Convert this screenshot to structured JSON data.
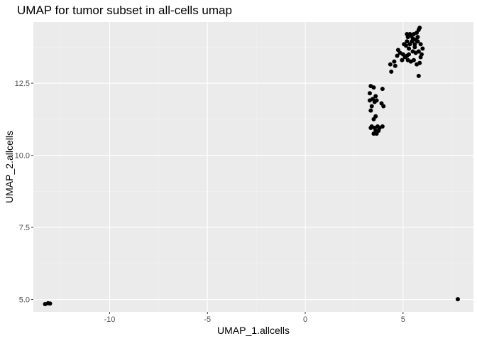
{
  "chart_data": {
    "type": "scatter",
    "title": "UMAP for tumor subset in all-cells umap",
    "xlabel": "UMAP_1.allcells",
    "ylabel": "UMAP_2.allcells",
    "xlim": [
      -13.9,
      8.6
    ],
    "ylim": [
      4.57,
      14.62
    ],
    "x_ticks": [
      -10,
      -5,
      0,
      5
    ],
    "x_tick_labels": [
      "-10",
      "-5",
      "0",
      "5"
    ],
    "y_ticks": [
      5.0,
      7.5,
      10.0,
      12.5
    ],
    "y_tick_labels": [
      "5.0",
      "7.5",
      "10.0",
      "12.5"
    ],
    "grid": true,
    "point_color": "#000000",
    "panel_color": "#ebebeb",
    "points": [
      [
        -13.3,
        4.84
      ],
      [
        -13.15,
        4.87
      ],
      [
        -13.05,
        4.86
      ],
      [
        7.8,
        5.01
      ],
      [
        3.35,
        12.4
      ],
      [
        3.5,
        12.35
      ],
      [
        3.3,
        12.15
      ],
      [
        3.6,
        12.05
      ],
      [
        3.45,
        11.95
      ],
      [
        3.3,
        11.9
      ],
      [
        3.55,
        11.85
      ],
      [
        3.65,
        11.9
      ],
      [
        3.4,
        11.7
      ],
      [
        3.35,
        11.55
      ],
      [
        3.6,
        11.35
      ],
      [
        3.5,
        11.25
      ],
      [
        3.95,
        12.3
      ],
      [
        3.9,
        11.8
      ],
      [
        4.0,
        11.7
      ],
      [
        3.4,
        11.0
      ],
      [
        3.35,
        10.95
      ],
      [
        3.55,
        10.95
      ],
      [
        3.7,
        11.0
      ],
      [
        3.8,
        10.95
      ],
      [
        3.95,
        11.0
      ],
      [
        3.6,
        10.85
      ],
      [
        3.75,
        10.85
      ],
      [
        3.5,
        10.75
      ],
      [
        3.65,
        10.75
      ],
      [
        4.4,
        12.9
      ],
      [
        4.35,
        13.15
      ],
      [
        4.6,
        13.1
      ],
      [
        4.55,
        13.25
      ],
      [
        4.7,
        13.45
      ],
      [
        4.85,
        13.55
      ],
      [
        4.75,
        13.65
      ],
      [
        5.0,
        13.5
      ],
      [
        5.1,
        13.4
      ],
      [
        4.95,
        13.3
      ],
      [
        5.2,
        13.45
      ],
      [
        5.25,
        13.3
      ],
      [
        5.4,
        13.25
      ],
      [
        5.55,
        13.3
      ],
      [
        5.7,
        13.15
      ],
      [
        5.85,
        13.2
      ],
      [
        5.9,
        13.4
      ],
      [
        5.95,
        13.5
      ],
      [
        6.0,
        13.7
      ],
      [
        5.8,
        13.6
      ],
      [
        5.65,
        13.55
      ],
      [
        5.5,
        13.6
      ],
      [
        5.3,
        13.7
      ],
      [
        5.15,
        13.8
      ],
      [
        5.2,
        13.95
      ],
      [
        5.35,
        13.85
      ],
      [
        5.45,
        13.95
      ],
      [
        5.6,
        13.85
      ],
      [
        5.75,
        13.95
      ],
      [
        5.9,
        13.85
      ],
      [
        5.25,
        14.1
      ],
      [
        5.4,
        14.15
      ],
      [
        5.55,
        14.2
      ],
      [
        5.7,
        14.25
      ],
      [
        5.8,
        14.35
      ],
      [
        5.85,
        14.42
      ],
      [
        5.2,
        14.2
      ],
      [
        5.35,
        14.2
      ],
      [
        5.5,
        14.05
      ],
      [
        5.65,
        14.0
      ],
      [
        5.8,
        12.75
      ],
      [
        5.05,
        13.85
      ],
      [
        5.3,
        13.5
      ],
      [
        5.6,
        13.75
      ],
      [
        5.75,
        14.1
      ]
    ]
  }
}
